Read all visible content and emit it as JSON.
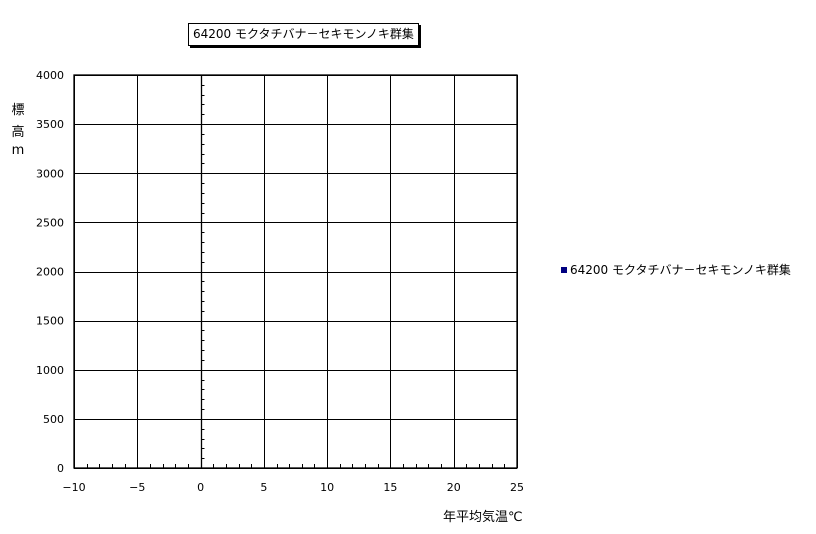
{
  "chart_data": {
    "type": "scatter",
    "title": "64200 モクタチバナ－セキモンノキ群集",
    "xlabel": "年平均気温℃",
    "ylabel": [
      "標",
      "高",
      "m"
    ],
    "xlim": [
      -10,
      25
    ],
    "ylim": [
      0,
      4000
    ],
    "xticks": [
      -10,
      -5,
      0,
      5,
      10,
      15,
      20,
      25
    ],
    "yticks": [
      0,
      500,
      1000,
      1500,
      2000,
      2500,
      3000,
      3500,
      4000
    ],
    "x_minor_step": 1,
    "y_minor_step": 100,
    "grid": true,
    "legend_position": "right",
    "series": [
      {
        "name": "64200 モクタチバナ－セキモンノキ群集",
        "color": "#000080",
        "points": []
      }
    ]
  }
}
